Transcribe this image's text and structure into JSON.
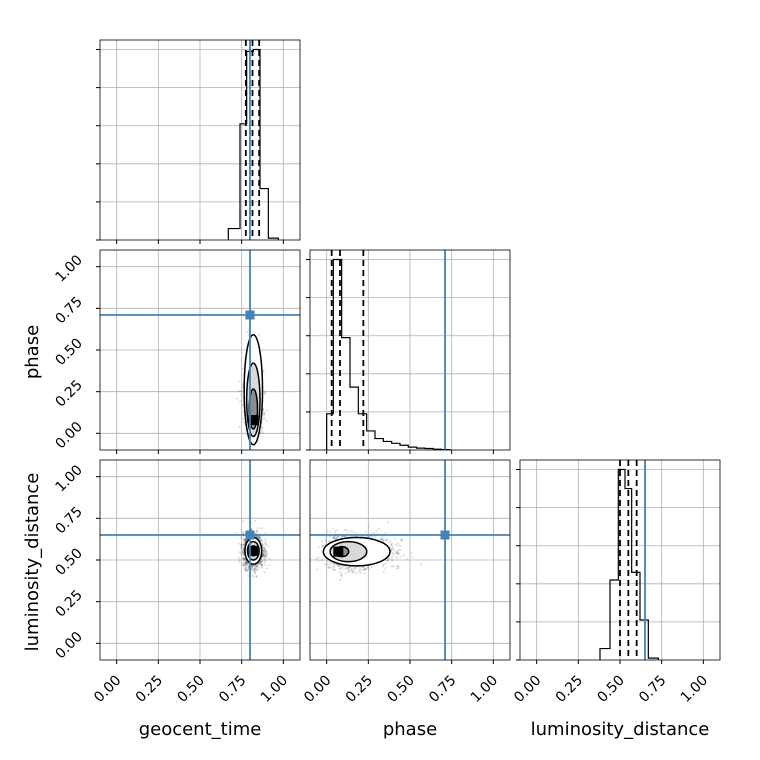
{
  "chart_data": {
    "type": "corner",
    "parameters": [
      "geocent_time",
      "phase",
      "luminosity_distance"
    ],
    "axis_ticks": [
      "0.00",
      "0.25",
      "0.50",
      "0.75",
      "1.00"
    ],
    "axis_range": [
      -0.1,
      1.1
    ],
    "truths": {
      "geocent_time": 0.8,
      "phase": 0.71,
      "luminosity_distance": 0.65
    },
    "colors": {
      "truth": "#4682b4",
      "hist": "#000000",
      "grid": "#b0b0b0",
      "samples": "#000000"
    },
    "marginals": [
      {
        "parameter": "geocent_time",
        "bin_edges": [
          0.67,
          0.74,
          0.78,
          0.82,
          0.86,
          0.91,
          0.97
        ],
        "counts": [
          0.06,
          0.61,
          0.99,
          1.0,
          0.27,
          0.01
        ],
        "quantiles": [
          0.775,
          0.815,
          0.855
        ],
        "ylim": [
          0,
          1.05
        ]
      },
      {
        "parameter": "phase",
        "bin_edges": [
          0.0,
          0.04,
          0.09,
          0.14,
          0.19,
          0.24,
          0.29,
          0.34,
          0.39,
          0.44,
          0.49,
          0.54,
          0.59,
          0.64,
          0.69,
          0.74
        ],
        "counts": [
          0.19,
          1.0,
          0.59,
          0.33,
          0.19,
          0.1,
          0.06,
          0.045,
          0.035,
          0.025,
          0.015,
          0.01,
          0.008,
          0.004,
          0.002
        ],
        "quantiles": [
          0.03,
          0.08,
          0.22
        ],
        "ylim": [
          0,
          1.05
        ]
      },
      {
        "parameter": "luminosity_distance",
        "bin_edges": [
          0.38,
          0.44,
          0.49,
          0.53,
          0.57,
          0.62,
          0.67,
          0.73
        ],
        "counts": [
          0.06,
          0.42,
          1.0,
          0.9,
          0.46,
          0.21,
          0.01
        ],
        "quantiles": [
          0.5,
          0.55,
          0.6
        ],
        "ylim": [
          0,
          1.05
        ]
      }
    ],
    "joints": [
      {
        "x": "geocent_time",
        "y": "phase",
        "center": [
          0.82,
          0.08
        ],
        "spread": [
          0.025,
          0.15
        ],
        "skew": "up",
        "contours": [
          [
            0.025,
            0.12
          ],
          [
            0.04,
            0.22
          ],
          [
            0.055,
            0.33
          ]
        ]
      },
      {
        "x": "geocent_time",
        "y": "luminosity_distance",
        "center": [
          0.82,
          0.555
        ],
        "spread": [
          0.03,
          0.05
        ],
        "skew": "none",
        "contours": [
          [
            0.02,
            0.03
          ],
          [
            0.035,
            0.055
          ],
          [
            0.05,
            0.08
          ]
        ]
      },
      {
        "x": "phase",
        "y": "luminosity_distance",
        "center": [
          0.07,
          0.55
        ],
        "spread": [
          0.15,
          0.05
        ],
        "skew": "right",
        "contours": [
          [
            0.04,
            0.03
          ],
          [
            0.11,
            0.06
          ],
          [
            0.2,
            0.085
          ]
        ]
      }
    ]
  }
}
